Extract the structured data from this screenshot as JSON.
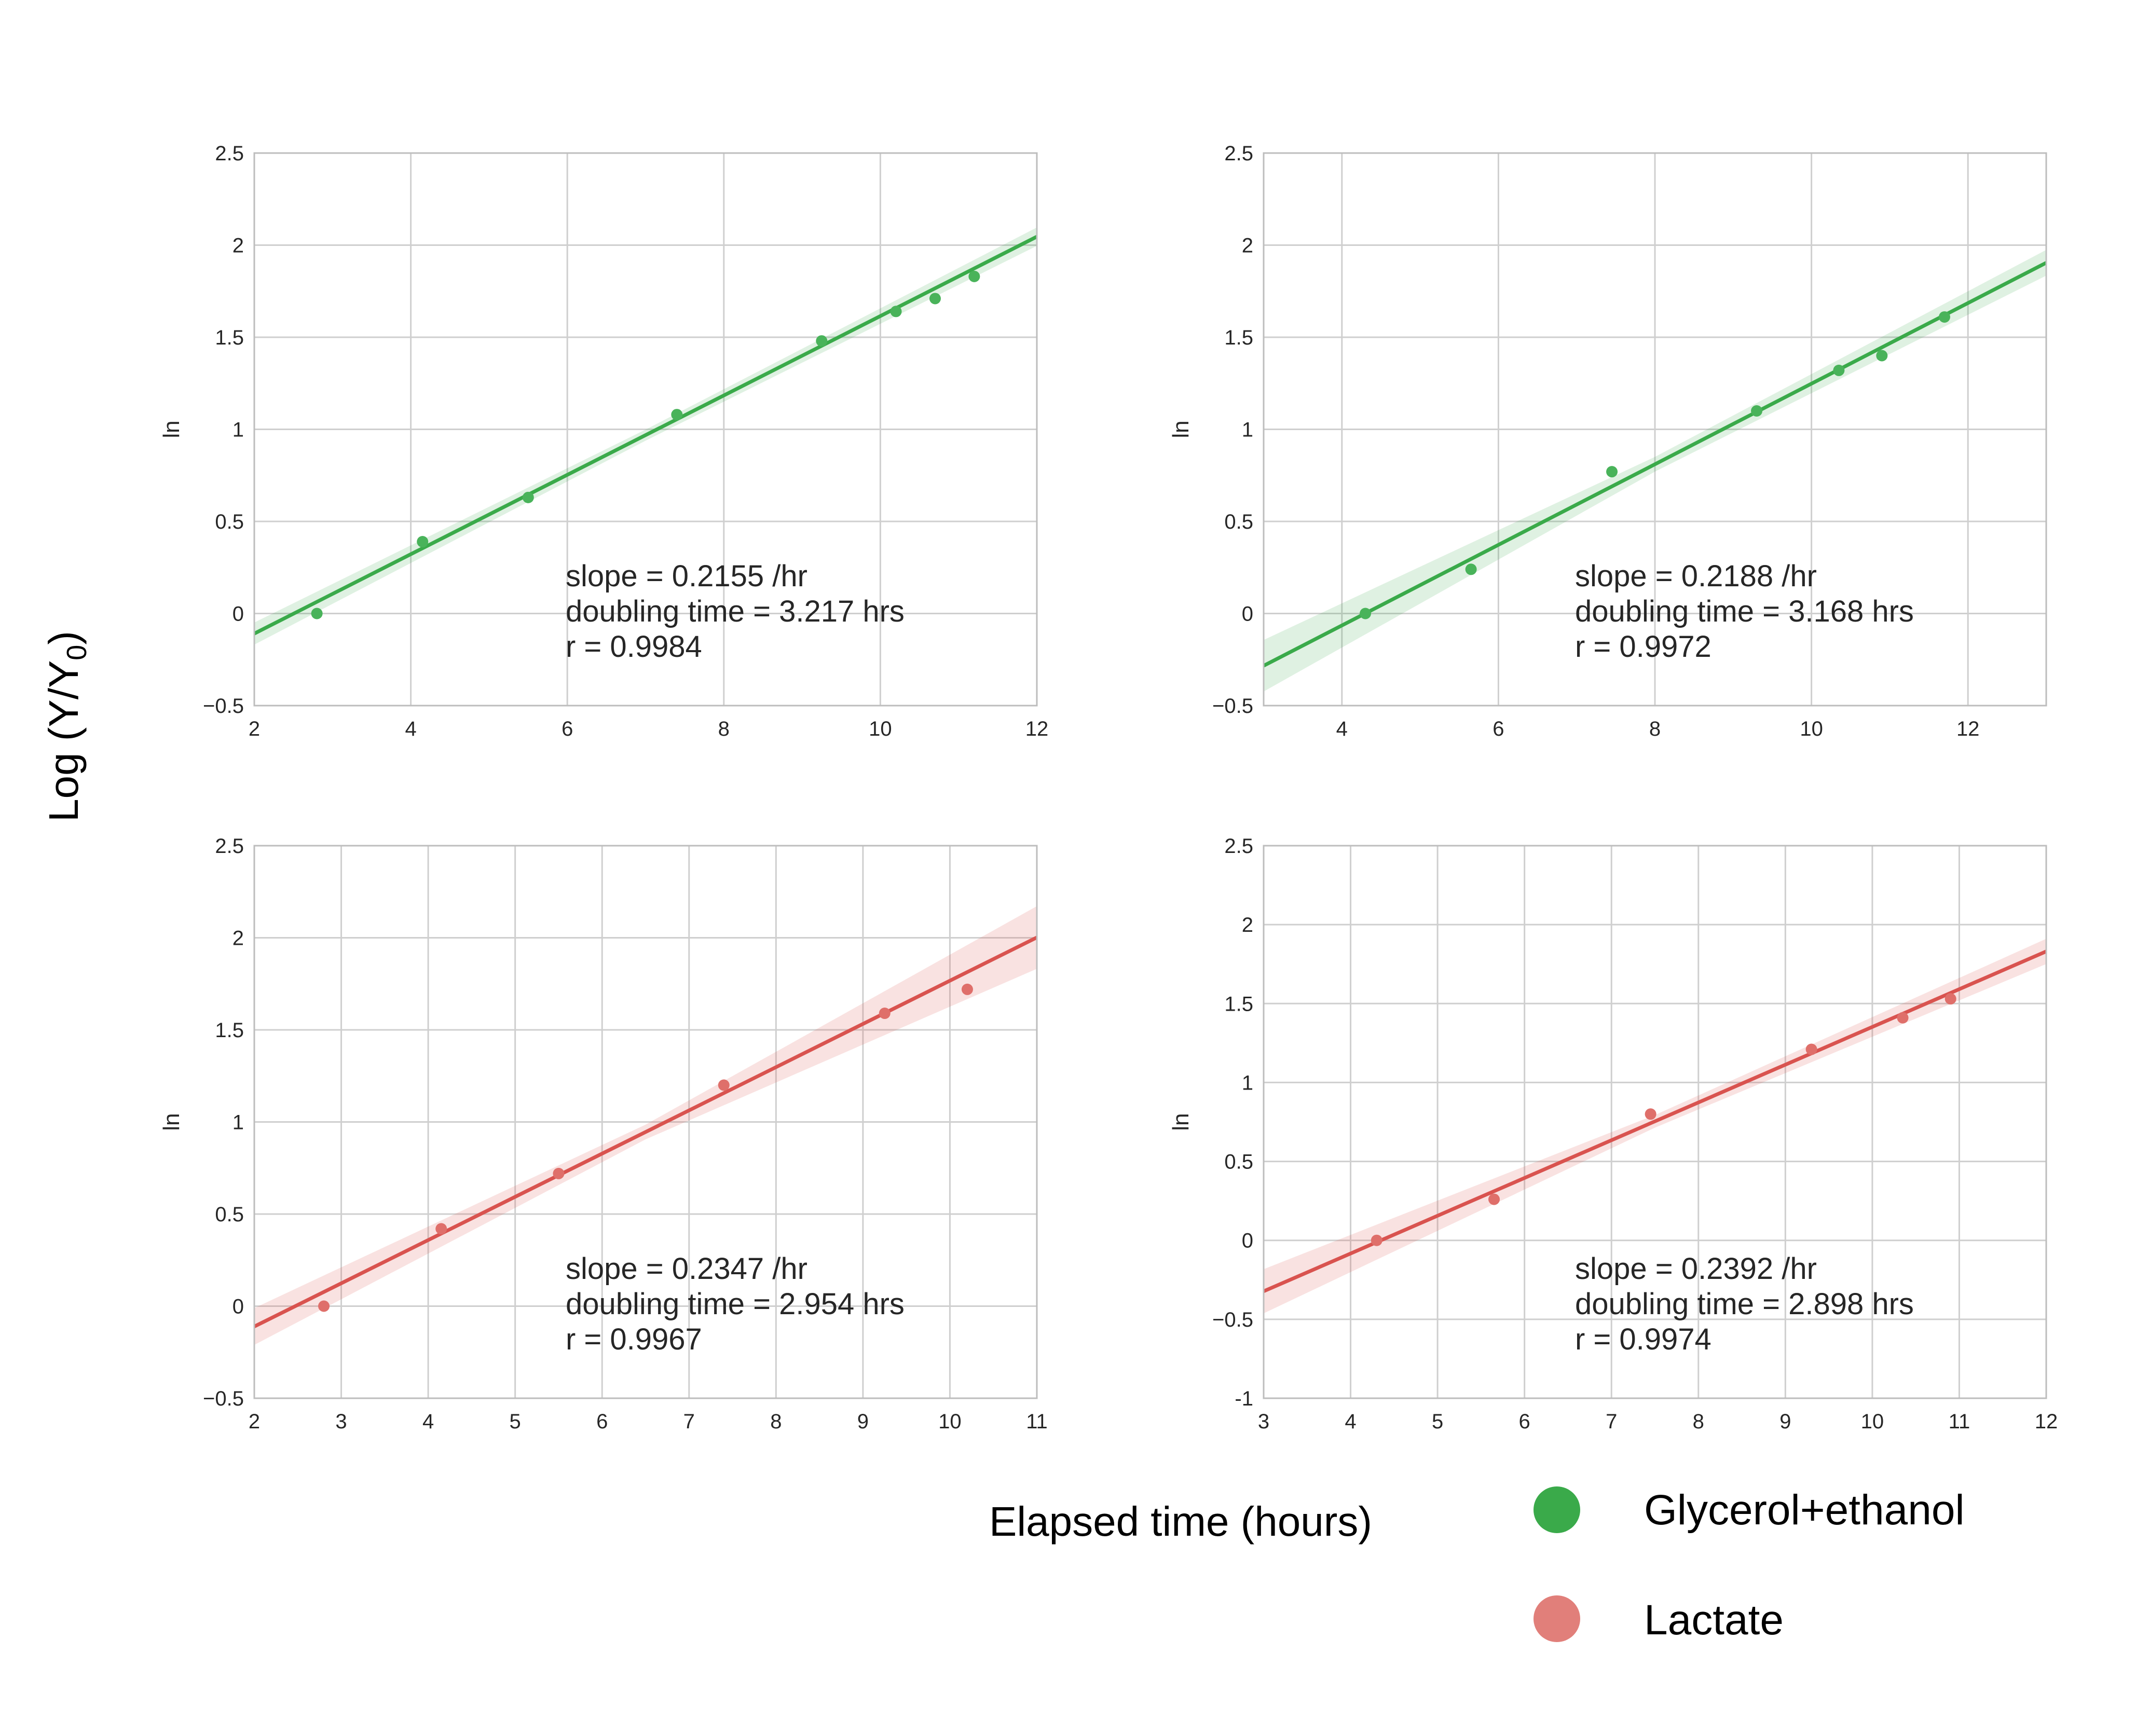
{
  "figure": {
    "ylabel_main": "Log (Y/Y",
    "ylabel_sub": "0",
    "ylabel_close": ")",
    "xlabel_main": "Elapsed time (hours)",
    "legend": [
      {
        "label": "Glycerol+ethanol",
        "color": "#3aaa4a"
      },
      {
        "label": "Lactate",
        "color": "#e17f7a"
      }
    ],
    "colors": {
      "green": "#3aaa4a",
      "red": "#d9534f",
      "grid": "#cccccc",
      "axis": "#bdbdbd",
      "text": "#262626"
    }
  },
  "chart_data": [
    {
      "type": "scatter",
      "ylabel": "ln",
      "xlim": [
        2,
        12
      ],
      "ylim": [
        -0.5,
        2.5
      ],
      "xticks": [
        2,
        4,
        6,
        8,
        10,
        12
      ],
      "yticks": [
        -0.5,
        0.0,
        0.5,
        1.0,
        1.5,
        2.0,
        2.5
      ],
      "color": "green",
      "points": [
        [
          2.8,
          0.0
        ],
        [
          4.15,
          0.39
        ],
        [
          5.5,
          0.63
        ],
        [
          7.4,
          1.08
        ],
        [
          9.25,
          1.48
        ],
        [
          10.2,
          1.64
        ],
        [
          10.7,
          1.71
        ],
        [
          11.2,
          1.83
        ]
      ],
      "fit": {
        "slope": 0.2155,
        "intercept": -0.54,
        "band": [
          0.06,
          0.03,
          0.05
        ]
      },
      "annotation": [
        "slope = 0.2155 /hr",
        "doubling time = 3.217 hrs",
        "r = 0.9984"
      ]
    },
    {
      "type": "scatter",
      "ylabel": "ln",
      "xlim": [
        3,
        13
      ],
      "ylim": [
        -0.5,
        2.5
      ],
      "xticks": [
        4,
        6,
        8,
        10,
        12
      ],
      "yticks": [
        -0.5,
        0.0,
        0.5,
        1.0,
        1.5,
        2.0,
        2.5
      ],
      "color": "green",
      "points": [
        [
          4.3,
          0.0
        ],
        [
          5.65,
          0.24
        ],
        [
          7.45,
          0.77
        ],
        [
          9.3,
          1.1
        ],
        [
          10.35,
          1.32
        ],
        [
          10.9,
          1.4
        ],
        [
          11.7,
          1.61
        ]
      ],
      "fit": {
        "slope": 0.2188,
        "intercept": -0.94,
        "band": [
          0.14,
          0.04,
          0.07
        ]
      },
      "annotation": [
        "slope = 0.2188 /hr",
        "doubling time = 3.168 hrs",
        "r = 0.9972"
      ]
    },
    {
      "type": "scatter",
      "ylabel": "ln",
      "xlim": [
        2,
        11
      ],
      "ylim": [
        -0.5,
        2.5
      ],
      "xticks": [
        2,
        3,
        4,
        5,
        6,
        7,
        8,
        9,
        10,
        11
      ],
      "yticks": [
        -0.5,
        0.0,
        0.5,
        1.0,
        1.5,
        2.0,
        2.5
      ],
      "color": "red",
      "points": [
        [
          2.8,
          0.0
        ],
        [
          4.15,
          0.42
        ],
        [
          5.5,
          0.72
        ],
        [
          7.4,
          1.2
        ],
        [
          9.25,
          1.59
        ],
        [
          10.2,
          1.72
        ]
      ],
      "fit": {
        "slope": 0.2347,
        "intercept": -0.58,
        "band": [
          0.1,
          0.04,
          0.17
        ]
      },
      "annotation": [
        "slope = 0.2347 /hr",
        "doubling time = 2.954 hrs",
        "r = 0.9967"
      ]
    },
    {
      "type": "scatter",
      "ylabel": "ln",
      "xlim": [
        3,
        12
      ],
      "ylim": [
        -1.0,
        2.5
      ],
      "xticks": [
        3,
        4,
        5,
        6,
        7,
        8,
        9,
        10,
        11,
        12
      ],
      "yticks": [
        -1.0,
        -0.5,
        0.0,
        0.5,
        1.0,
        1.5,
        2.0,
        2.5
      ],
      "color": "red",
      "points": [
        [
          4.3,
          0.0
        ],
        [
          5.65,
          0.26
        ],
        [
          7.45,
          0.8
        ],
        [
          9.3,
          1.21
        ],
        [
          10.35,
          1.41
        ],
        [
          10.9,
          1.53
        ]
      ],
      "fit": {
        "slope": 0.2392,
        "intercept": -1.04,
        "band": [
          0.14,
          0.04,
          0.08
        ]
      },
      "annotation": [
        "slope = 0.2392 /hr",
        "doubling time = 2.898 hrs",
        "r = 0.9974"
      ]
    }
  ]
}
